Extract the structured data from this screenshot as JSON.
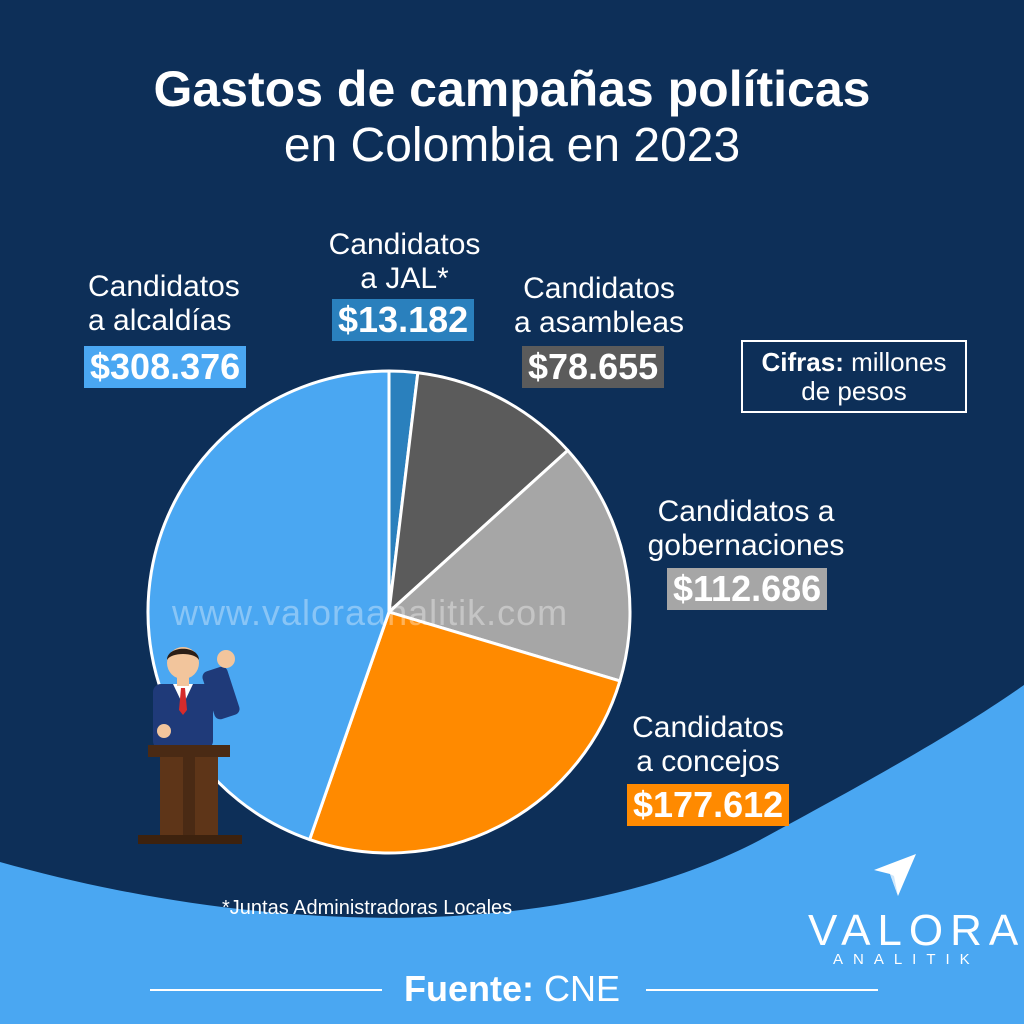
{
  "title": {
    "line1": "Gastos de campañas políticas",
    "line2": "en Colombia en 2023"
  },
  "unit_note": {
    "bold": "Cifras:",
    "rest1": "millones",
    "rest2": "de pesos"
  },
  "watermark": "www.valoraanalitik.com",
  "footnote": "*Juntas Administradoras Locales",
  "source": {
    "label": "Fuente:",
    "value": "CNE"
  },
  "logo": {
    "word": "VALORA",
    "sub": "ANALITIK"
  },
  "colors": {
    "background": "#0d2f58",
    "wave": "#4aa7f2",
    "alcaldias": "#4aa7f2",
    "jal": "#2a80bd",
    "asambleas": "#5b5b5b",
    "gobernaciones": "#a6a6a6",
    "concejos": "#ff8a00"
  },
  "chart_data": {
    "type": "pie",
    "title": "Gastos de campañas políticas en Colombia en 2023",
    "unit": "millones de pesos",
    "start_angle": "12 o'clock, clockwise",
    "slices": [
      {
        "key": "jal",
        "label_line1": "Candidatos",
        "label_line2": "a JAL*",
        "value": 13182,
        "display": "$13.182"
      },
      {
        "key": "asambleas",
        "label_line1": "Candidatos",
        "label_line2": "a asambleas",
        "value": 78655,
        "display": "$78.655"
      },
      {
        "key": "gobernaciones",
        "label_line1": "Candidatos a",
        "label_line2": "gobernaciones",
        "value": 112686,
        "display": "$112.686"
      },
      {
        "key": "concejos",
        "label_line1": "Candidatos",
        "label_line2": "a concejos",
        "value": 177612,
        "display": "$177.612"
      },
      {
        "key": "alcaldias",
        "label_line1": "Candidatos",
        "label_line2": "a alcaldías",
        "value": 308376,
        "display": "$308.376"
      }
    ]
  }
}
